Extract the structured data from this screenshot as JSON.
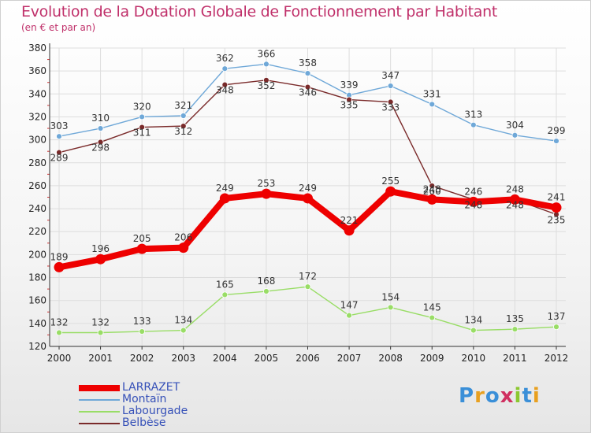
{
  "title": "Evolution de la Dotation Globale de Fonctionnement par Habitant",
  "subtitle": "(en € et par an)",
  "logo": [
    "P",
    "r",
    "o",
    "x",
    "i",
    "t",
    "i"
  ],
  "logo_colors": [
    "#3a8fd8",
    "#e8a020",
    "#3a8fd8",
    "#d03060",
    "#8cc830",
    "#3a8fd8",
    "#e8a020"
  ],
  "chart_data": {
    "type": "line",
    "x": [
      "2000",
      "2001",
      "2002",
      "2003",
      "2004",
      "2005",
      "2006",
      "2007",
      "2008",
      "2009",
      "2010",
      "2011",
      "2012"
    ],
    "ylim": [
      120,
      380
    ],
    "yticks": [
      120,
      140,
      160,
      180,
      200,
      220,
      240,
      260,
      280,
      300,
      320,
      340,
      360,
      380
    ],
    "grid": true,
    "legend_position": "bottom-left",
    "series": [
      {
        "name": "LARRAZET",
        "color": "#ee0000",
        "values": [
          189,
          196,
          205,
          206,
          249,
          253,
          249,
          221,
          255,
          248,
          246,
          248,
          241
        ]
      },
      {
        "name": "Montaïn",
        "color": "#6fa8d8",
        "values": [
          303,
          310,
          320,
          321,
          362,
          366,
          358,
          339,
          347,
          331,
          313,
          304,
          299
        ]
      },
      {
        "name": "Labourgade",
        "color": "#99dd66",
        "values": [
          132,
          132,
          133,
          134,
          165,
          168,
          172,
          147,
          154,
          145,
          134,
          135,
          137
        ]
      },
      {
        "name": "Belbèse",
        "color": "#7a2a2a",
        "values": [
          289,
          298,
          311,
          312,
          348,
          352,
          346,
          335,
          333,
          260,
          248,
          248,
          235
        ]
      }
    ]
  }
}
